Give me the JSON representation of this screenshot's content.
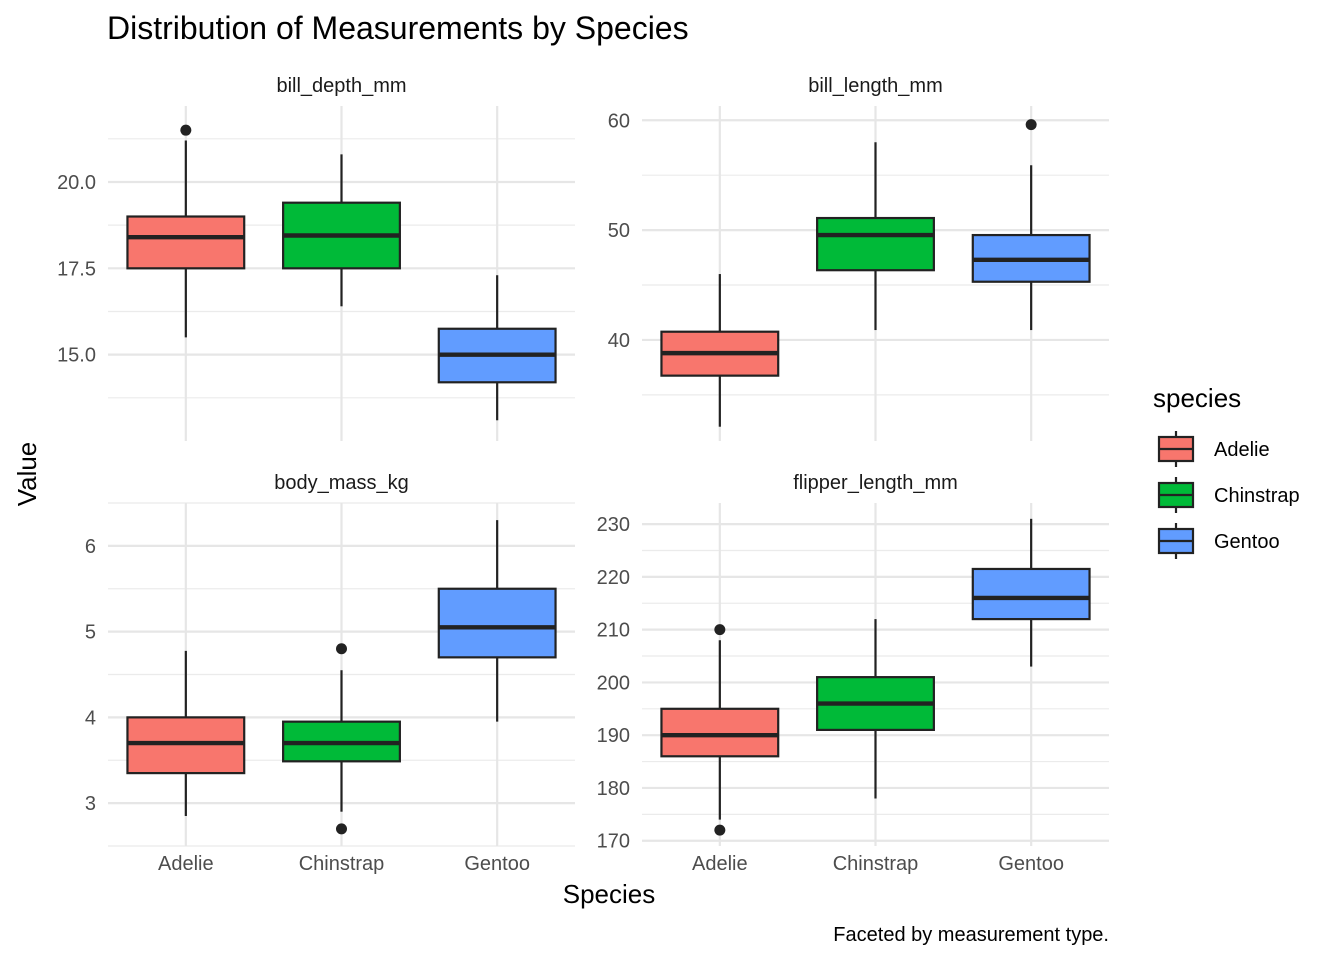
{
  "chart_data": {
    "type": "boxplot",
    "title": "Distribution of Measurements by Species",
    "xlabel": "Species",
    "ylabel": "Value",
    "caption": "Faceted by measurement type.",
    "categories": [
      "Adelie",
      "Chinstrap",
      "Gentoo"
    ],
    "colors": {
      "Adelie": "#F8766D",
      "Chinstrap": "#00BA38",
      "Gentoo": "#619CFF"
    },
    "legend": {
      "title": "species",
      "position": "right",
      "entries": [
        "Adelie",
        "Chinstrap",
        "Gentoo"
      ]
    },
    "grid": true,
    "facets": [
      {
        "name": "bill_depth_mm",
        "ylim": [
          12.5,
          22.2
        ],
        "ticks": [
          15.0,
          17.5,
          20.0
        ],
        "tick_labels": [
          "15.0",
          "17.5",
          "20.0"
        ],
        "boxes": [
          {
            "species": "Adelie",
            "lower_whisker": 15.5,
            "q1": 17.5,
            "median": 18.4,
            "q3": 19.0,
            "upper_whisker": 21.2,
            "outliers": [
              21.5
            ]
          },
          {
            "species": "Chinstrap",
            "lower_whisker": 16.4,
            "q1": 17.5,
            "median": 18.45,
            "q3": 19.4,
            "upper_whisker": 20.8,
            "outliers": []
          },
          {
            "species": "Gentoo",
            "lower_whisker": 13.1,
            "q1": 14.2,
            "median": 15.0,
            "q3": 15.75,
            "upper_whisker": 17.3,
            "outliers": []
          }
        ]
      },
      {
        "name": "bill_length_mm",
        "ylim": [
          30.8,
          61.3
        ],
        "ticks": [
          40,
          50,
          60
        ],
        "tick_labels": [
          "40",
          "50",
          "60"
        ],
        "boxes": [
          {
            "species": "Adelie",
            "lower_whisker": 32.1,
            "q1": 36.75,
            "median": 38.8,
            "q3": 40.75,
            "upper_whisker": 46.0,
            "outliers": []
          },
          {
            "species": "Chinstrap",
            "lower_whisker": 40.9,
            "q1": 46.35,
            "median": 49.55,
            "q3": 51.1,
            "upper_whisker": 58.0,
            "outliers": []
          },
          {
            "species": "Gentoo",
            "lower_whisker": 40.9,
            "q1": 45.3,
            "median": 47.3,
            "q3": 49.55,
            "upper_whisker": 55.9,
            "outliers": [
              59.6
            ]
          }
        ]
      },
      {
        "name": "body_mass_kg",
        "ylim": [
          2.5,
          6.5
        ],
        "ticks": [
          3,
          4,
          5,
          6
        ],
        "tick_labels": [
          "3",
          "4",
          "5",
          "6"
        ],
        "boxes": [
          {
            "species": "Adelie",
            "lower_whisker": 2.85,
            "q1": 3.35,
            "median": 3.7,
            "q3": 4.0,
            "upper_whisker": 4.775,
            "outliers": []
          },
          {
            "species": "Chinstrap",
            "lower_whisker": 2.9,
            "q1": 3.4875,
            "median": 3.7,
            "q3": 3.95,
            "upper_whisker": 4.55,
            "outliers": [
              4.8,
              2.7
            ]
          },
          {
            "species": "Gentoo",
            "lower_whisker": 3.95,
            "q1": 4.7,
            "median": 5.05,
            "q3": 5.5,
            "upper_whisker": 6.3,
            "outliers": []
          }
        ]
      },
      {
        "name": "flipper_length_mm",
        "ylim": [
          169,
          234
        ],
        "ticks": [
          170,
          180,
          190,
          200,
          210,
          220,
          230
        ],
        "tick_labels": [
          "170",
          "180",
          "190",
          "200",
          "210",
          "220",
          "230"
        ],
        "boxes": [
          {
            "species": "Adelie",
            "lower_whisker": 174,
            "q1": 186,
            "median": 190,
            "q3": 195,
            "upper_whisker": 208,
            "outliers": [
              210,
              172
            ]
          },
          {
            "species": "Chinstrap",
            "lower_whisker": 178,
            "q1": 191,
            "median": 196,
            "q3": 201,
            "upper_whisker": 212,
            "outliers": []
          },
          {
            "species": "Gentoo",
            "lower_whisker": 203,
            "q1": 212,
            "median": 216,
            "q3": 221.5,
            "upper_whisker": 231,
            "outliers": []
          }
        ]
      }
    ]
  }
}
